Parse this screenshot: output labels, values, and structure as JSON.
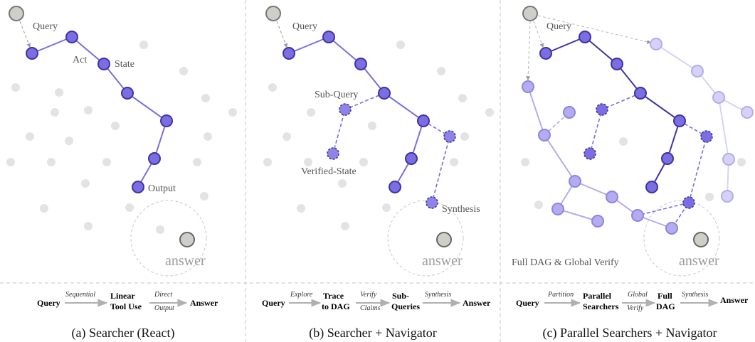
{
  "panel_a": {
    "labels": {
      "query": "Query",
      "act": "Act",
      "state": "State",
      "output": "Output"
    },
    "answer": "answer",
    "flow": {
      "query": "Query",
      "edge1": "Sequential",
      "box1_line1": "Linear",
      "box1_line2": "Tool Use",
      "edge2_line1": "Direct",
      "edge2_line2": "Output",
      "end": "Answer"
    },
    "caption": "(a) Searcher (React)"
  },
  "panel_b": {
    "labels": {
      "query": "Query",
      "subquery": "Sub-Query",
      "verified": "Verified-State",
      "synthesis": "Synthesis"
    },
    "answer": "answer",
    "flow": {
      "query": "Query",
      "edge1": "Explore",
      "box1_line1": "Trace",
      "box1_line2": "to DAG",
      "edge2_line1": "Verify",
      "edge2_line2": "Claims",
      "box2_line1": "Sub-",
      "box2_line2": "Queries",
      "edge3": "Synthesis",
      "end": "Answer"
    },
    "caption": "(b) Searcher + Navigator"
  },
  "panel_c": {
    "labels": {
      "query": "Query",
      "fullverify": "Full DAG & Global Verify"
    },
    "answer": "answer",
    "flow": {
      "query": "Query",
      "edge1": "Partition",
      "box1_line1": "Parallel",
      "box1_line2": "Searchers",
      "edge2_line1": "Global",
      "edge2_line2": "Verify",
      "box2_line1": "Full",
      "box2_line2": "DAG",
      "edge3": "Synthesis",
      "end": "Answer"
    },
    "caption": "(c) Parallel Searchers + Navigator"
  },
  "colors": {
    "node_dark": "#7a6ee0",
    "node_dark_stroke": "#3e32a8",
    "node_light": "#b3acee",
    "node_lighter": "#d6d2f7",
    "bg_dot": "#e3e3e3",
    "query_node": "#cfcfca"
  }
}
